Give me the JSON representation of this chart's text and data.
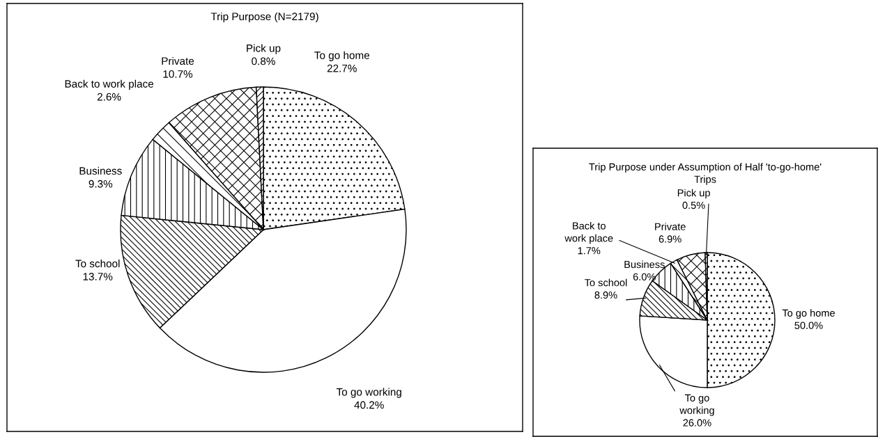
{
  "chart_data": [
    {
      "type": "pie",
      "title": "Trip Purpose (N=2179)",
      "categories": [
        "To go home",
        "To go working",
        "To school",
        "Business",
        "Back to work place",
        "Private",
        "Pick up"
      ],
      "values": [
        22.7,
        40.2,
        13.7,
        9.3,
        2.6,
        10.7,
        0.8
      ],
      "value_labels": [
        "22.7%",
        "40.2%",
        "13.7%",
        "9.3%",
        "2.6%",
        "10.7%",
        "0.8%"
      ],
      "colors": [
        "#ffffff",
        "#ffffff",
        "#ffffff",
        "#ffffff",
        "#ffffff",
        "#ffffff",
        "#ffffff"
      ]
    },
    {
      "type": "pie",
      "title": "Trip Purpose under Assumption of Half 'to-go-home'\nTrips",
      "categories": [
        "To go home",
        "To go\nworking",
        "To school",
        "Business",
        "Back to\nwork place",
        "Private",
        "Pick up"
      ],
      "values": [
        50.0,
        26.0,
        8.9,
        6.0,
        1.7,
        6.9,
        0.5
      ],
      "value_labels": [
        "50.0%",
        "26.0%",
        "8.9%",
        "6.0%",
        "1.7%",
        "6.9%",
        "0.5%"
      ],
      "colors": [
        "#ffffff",
        "#ffffff",
        "#ffffff",
        "#ffffff",
        "#ffffff",
        "#ffffff",
        "#ffffff"
      ]
    }
  ]
}
